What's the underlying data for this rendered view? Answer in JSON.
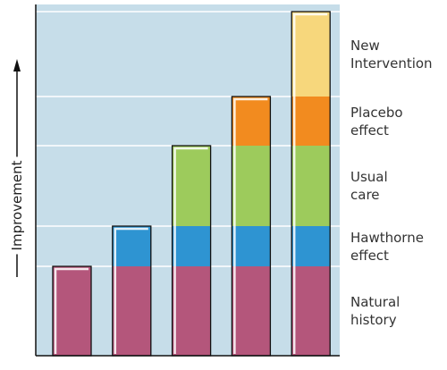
{
  "chart_data": {
    "type": "bar",
    "stacked": true,
    "y_label": "Improvement",
    "categories": [
      null,
      null,
      null,
      null,
      null
    ],
    "series": [
      {
        "name": "Natural history",
        "color": "#b4567b",
        "values": [
          100,
          100,
          100,
          100,
          100
        ]
      },
      {
        "name": "Hawthorne effect",
        "color": "#2e94d2",
        "values": [
          null,
          45,
          45,
          45,
          45
        ]
      },
      {
        "name": "Usual care",
        "color": "#9dcb5c",
        "values": [
          null,
          null,
          90,
          90,
          90
        ]
      },
      {
        "name": "Placebo effect",
        "color": "#f28b1f",
        "values": [
          null,
          null,
          null,
          55,
          55
        ]
      },
      {
        "name": "New Intervention",
        "color": "#f7d77c",
        "values": [
          null,
          null,
          null,
          null,
          95
        ]
      }
    ],
    "ylim": [
      0,
      393
    ],
    "grid": true,
    "legend": "right"
  }
}
